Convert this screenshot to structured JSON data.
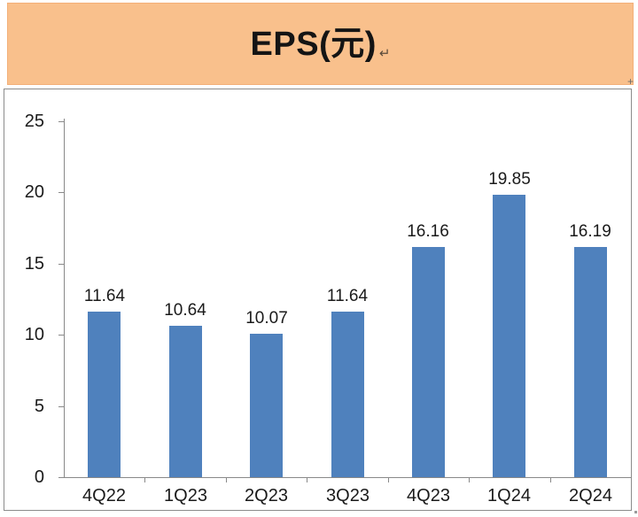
{
  "header": {
    "title": "EPS(元)",
    "paragraph_mark": "↵"
  },
  "artifacts": {
    "corner_plus": "+"
  },
  "colors": {
    "banner_bg": "#F9C08C",
    "banner_border": "#F3B079",
    "bar_fill": "#4F81BD",
    "chart_frame_border": "#8C8C8C",
    "axis_line": "#898989",
    "text": "#1A1A1A"
  },
  "chart_data": {
    "type": "bar",
    "title": "EPS(元)",
    "categories": [
      "4Q22",
      "1Q23",
      "2Q23",
      "3Q23",
      "4Q23",
      "1Q24",
      "2Q24"
    ],
    "values": [
      11.64,
      10.64,
      10.07,
      11.64,
      16.16,
      19.85,
      16.19
    ],
    "value_labels": [
      "11.64",
      "10.64",
      "10.07",
      "11.64",
      "16.16",
      "19.85",
      "16.19"
    ],
    "xlabel": "",
    "ylabel": "",
    "ylim": [
      0,
      25
    ],
    "yticks": [
      0,
      5,
      10,
      15,
      20,
      25
    ],
    "ytick_labels": [
      "0",
      "5",
      "10",
      "15",
      "20",
      "25"
    ],
    "grid": false,
    "legend": "none",
    "data_labels": "above-bars",
    "series_name": "EPS"
  }
}
